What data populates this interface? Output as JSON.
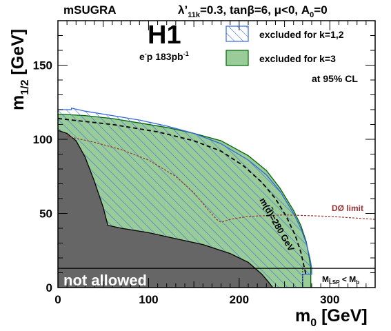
{
  "chart_data": {
    "type": "area",
    "header_left": "mSUGRA",
    "header_right": {
      "lambda": "λ’",
      "lambda_sub": "11k",
      "rest_1": "=0.3, tanβ=6, μ<0, A",
      "a0_sub": "0",
      "rest_2": "=0"
    },
    "experiment": "H1",
    "luminosity": {
      "pre": "e",
      "sup": "-",
      "post": "p 183pb",
      "sup2": "-1"
    },
    "xlabel": {
      "main": "m",
      "sub": "0",
      "unit": " [GeV]"
    },
    "ylabel": {
      "main": "m",
      "sub": "1/2",
      "unit": " [GeV]"
    },
    "xlim": [
      0,
      350
    ],
    "ylim": [
      0,
      180
    ],
    "xticks": [
      0,
      100,
      200,
      300
    ],
    "yticks": [
      0,
      50,
      100,
      150
    ],
    "legend": {
      "position": "top-right",
      "entries": [
        {
          "label": "excluded for k=1,2",
          "style": "hatched",
          "color": "#3366dd"
        },
        {
          "label": "excluded for k=3",
          "style": "filled",
          "color": "#99cc99",
          "edge": "#006600"
        }
      ],
      "cl_note": "at 95% CL"
    },
    "annotations": {
      "not_allowed": "not allowed",
      "dzero_label": "DØ limit",
      "squark_contour": "m(d̃)=280 GeV",
      "lsp_main": "M",
      "lsp_sub1": "LSP",
      "lsp_mid": " < M",
      "lsp_sub2": "b"
    },
    "series": [
      {
        "name": "not allowed",
        "color": "#666666",
        "x": [
          0,
          10,
          20,
          30,
          40,
          50,
          55,
          70,
          100,
          130,
          160,
          190,
          210,
          225,
          232,
          237
        ],
        "y": [
          106,
          104,
          99,
          88,
          72,
          54,
          42,
          40,
          37,
          33,
          29,
          23,
          17,
          9,
          4,
          0
        ]
      },
      {
        "name": "excluded for k=1,2",
        "color": "#3366dd",
        "x": [
          0,
          15,
          15,
          30,
          60,
          90,
          120,
          150,
          180,
          210,
          230,
          245,
          260,
          268,
          274,
          278,
          280,
          280,
          270,
          270,
          240
        ],
        "y": [
          120,
          120,
          121,
          119,
          116,
          113,
          109,
          104,
          97,
          86,
          76,
          65,
          50,
          40,
          30,
          20,
          13,
          9,
          9,
          0,
          0
        ]
      },
      {
        "name": "excluded for k=3",
        "color": "#99cc99",
        "x": [
          0,
          30,
          60,
          90,
          120,
          150,
          180,
          210,
          230,
          245,
          260,
          268,
          274,
          277,
          279,
          279
        ],
        "y": [
          117,
          116,
          114,
          111,
          108,
          104,
          99,
          89,
          79,
          67,
          52,
          42,
          31,
          21,
          13,
          13
        ]
      },
      {
        "name": "DØ limit",
        "color": "#993333",
        "x": [
          10,
          40,
          70,
          100,
          130,
          150,
          165,
          175,
          180,
          190,
          210,
          250,
          300,
          350
        ],
        "y": [
          102,
          98,
          93,
          86,
          75,
          64,
          53,
          46,
          44,
          46,
          48,
          49,
          48,
          46
        ]
      },
      {
        "name": "m(d̃)=280 GeV",
        "color": "#000000",
        "x": [
          0,
          60,
          110,
          150,
          180,
          205,
          225,
          240,
          252,
          262,
          268,
          272,
          274
        ],
        "y": [
          114,
          110,
          105,
          99,
          92,
          82,
          71,
          60,
          48,
          35,
          24,
          13,
          8
        ]
      },
      {
        "name": "M_LSP < M_b",
        "color": "#000000",
        "x": [
          0,
          350
        ],
        "y": [
          13,
          13
        ]
      }
    ]
  }
}
